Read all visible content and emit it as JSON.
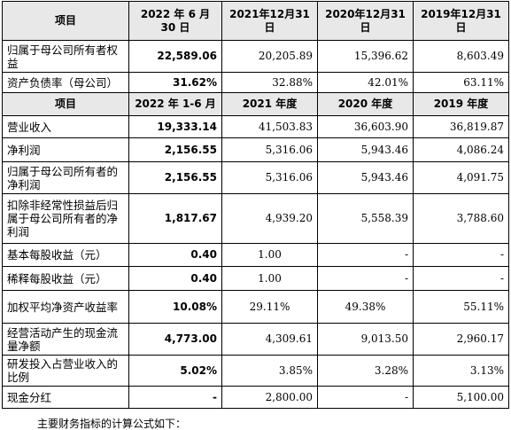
{
  "table1": {
    "headers": [
      "项目",
      "2022 年 6 月 30 日",
      "2021年12月31日",
      "2020年12月31日",
      "2019年12月31日"
    ],
    "rows": [
      {
        "label": "归属于母公司所有者权益",
        "values": [
          "22,589.06",
          "20,205.89",
          "15,396.62",
          "8,603.49"
        ]
      },
      {
        "label": "资产负债率（母公司）",
        "values": [
          "31.62%",
          "32.88%",
          "42.01%",
          "63.11%"
        ]
      }
    ]
  },
  "table2": {
    "headers": [
      "项目",
      "2022 年 1-6 月",
      "2021 年度",
      "2020 年度",
      "2019 年度"
    ],
    "rows": [
      {
        "label": "营业收入",
        "values": [
          "19,333.14",
          "41,503.83",
          "36,603.90",
          "36,819.87"
        ]
      },
      {
        "label": "净利润",
        "values": [
          "2,156.55",
          "5,316.06",
          "5,943.46",
          "4,086.24"
        ]
      },
      {
        "label": "归属于母公司所有者的净利润",
        "values": [
          "2,156.55",
          "5,316.06",
          "5,943.46",
          "4,091.75"
        ]
      },
      {
        "label": "扣除非经常性损益后归属于母公司所有者的净利润",
        "values": [
          "1,817.67",
          "4,939.20",
          "5,558.39",
          "3,788.60"
        ]
      },
      {
        "label": "基本每股收益（元）",
        "values": [
          "0.40",
          "1.00",
          "-",
          "-"
        ]
      },
      {
        "label": "稀释每股收益（元）",
        "values": [
          "0.40",
          "1.00",
          "-",
          "-"
        ]
      },
      {
        "label": "加权平均净资产收益率",
        "values": [
          "10.08%",
          "29.11%",
          "49.38%",
          "55.11%"
        ]
      },
      {
        "label": "经营活动产生的现金流量净额",
        "values": [
          "4,773.00",
          "4,309.61",
          "9,013.50",
          "2,960.17"
        ]
      },
      {
        "label": "研发投入占营业收入的比例",
        "values": [
          "5.02%",
          "3.85%",
          "3.28%",
          "3.13%"
        ]
      },
      {
        "label": "现金分红",
        "values": [
          "-",
          "2,800.00",
          "-",
          "5,100.00"
        ]
      }
    ]
  },
  "footnote": "主要财务指标的计算公式如下："
}
